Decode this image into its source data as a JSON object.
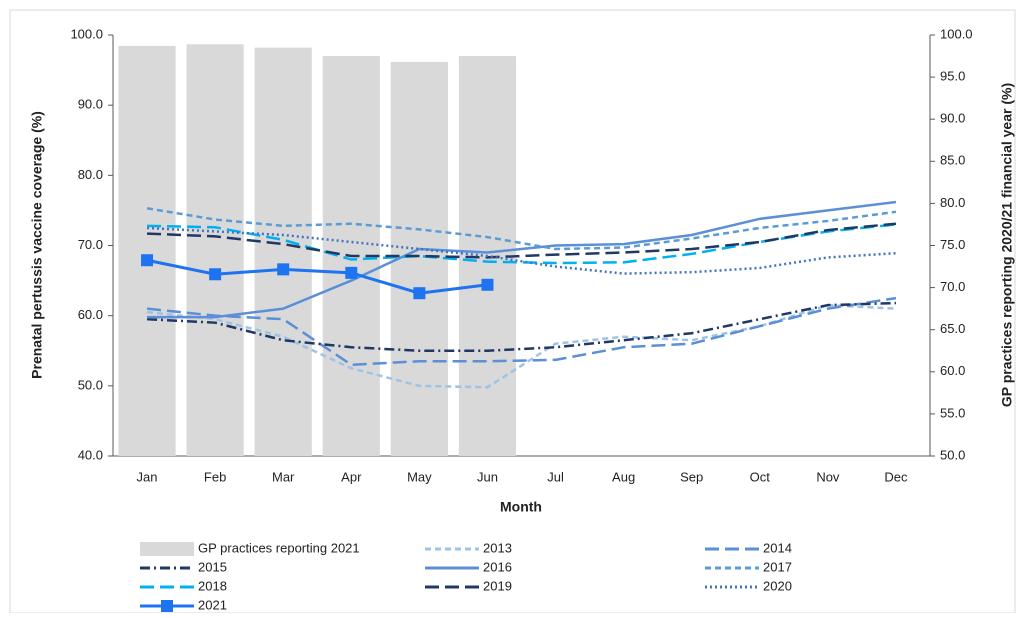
{
  "chart_data": {
    "type": "line",
    "x_label": "Month",
    "y_label": "Prenatal pertussis vaccine coverage (%)",
    "y2_label": "GP practices reporting 2020/21 financial year (%)",
    "categories": [
      "Jan",
      "Feb",
      "Mar",
      "Apr",
      "May",
      "Jun",
      "Jul",
      "Aug",
      "Sep",
      "Oct",
      "Nov",
      "Dec"
    ],
    "ylim": [
      40,
      100
    ],
    "yticks": [
      {
        "value": 40,
        "label": "40.0"
      },
      {
        "value": 50,
        "label": "50.0"
      },
      {
        "value": 60,
        "label": "60.0"
      },
      {
        "value": 70,
        "label": "70.0"
      },
      {
        "value": 80,
        "label": "80.0"
      },
      {
        "value": 90,
        "label": "90.0"
      },
      {
        "value": 100,
        "label": "100.0"
      }
    ],
    "y2lim": [
      50,
      100
    ],
    "y2ticks": [
      {
        "value": 50,
        "label": "50.0"
      },
      {
        "value": 55,
        "label": "55.0"
      },
      {
        "value": 60,
        "label": "60.0"
      },
      {
        "value": 65,
        "label": "65.0"
      },
      {
        "value": 70,
        "label": "70.0"
      },
      {
        "value": 75,
        "label": "75.0"
      },
      {
        "value": 80,
        "label": "80.0"
      },
      {
        "value": 85,
        "label": "85.0"
      },
      {
        "value": 90,
        "label": "90.0"
      },
      {
        "value": 95,
        "label": "95.0"
      },
      {
        "value": 100,
        "label": "100.0"
      }
    ],
    "grid": false,
    "legend": "bottom",
    "series": [
      {
        "name": "GP practices reporting 2021",
        "type": "bar",
        "axis": "y2",
        "color": "#d9d9d9",
        "values": [
          98.7,
          98.9,
          98.5,
          97.5,
          96.8,
          97.5,
          null,
          null,
          null,
          null,
          null,
          null
        ]
      },
      {
        "name": "2013",
        "type": "line",
        "style": "dashed",
        "color": "#9dc3e6",
        "values": [
          60.5,
          59.5,
          57,
          52.5,
          50,
          49.8,
          56,
          57,
          56.5,
          58.5,
          61.5,
          61
        ]
      },
      {
        "name": "2014",
        "type": "line",
        "style": "long-dash",
        "color": "#5b8fd6",
        "values": [
          61,
          60,
          59.5,
          53,
          53.5,
          53.5,
          53.7,
          55.5,
          56,
          58.5,
          61,
          62.5
        ]
      },
      {
        "name": "2015",
        "type": "line",
        "style": "dash-dot",
        "color": "#1f3864",
        "values": [
          59.5,
          59,
          56.5,
          55.5,
          55,
          55,
          55.5,
          56.5,
          57.5,
          59.5,
          61.5,
          61.8
        ]
      },
      {
        "name": "2016",
        "type": "line",
        "style": "solid",
        "color": "#5b8fd6",
        "values": [
          59.8,
          59.8,
          61,
          65,
          69.5,
          69,
          70,
          70.2,
          71.5,
          73.8,
          75,
          76.2
        ]
      },
      {
        "name": "2017",
        "type": "line",
        "style": "dashed",
        "color": "#5b9bd5",
        "values": [
          75.3,
          73.7,
          72.8,
          73.1,
          72.3,
          71.2,
          69.5,
          69.7,
          71,
          72.5,
          73.5,
          74.8
        ]
      },
      {
        "name": "2018",
        "type": "line",
        "style": "long-dash",
        "color": "#00b0f0",
        "values": [
          72.8,
          72.6,
          70.8,
          68,
          68.5,
          67.7,
          67.5,
          67.6,
          68.8,
          70.5,
          72,
          73
        ]
      },
      {
        "name": "2019",
        "type": "line",
        "style": "long-dash",
        "color": "#1f3864",
        "values": [
          71.7,
          71.3,
          70.2,
          68.5,
          68.5,
          68.3,
          68.7,
          69,
          69.5,
          70.5,
          72.2,
          73.1
        ]
      },
      {
        "name": "2020",
        "type": "line",
        "style": "dotted",
        "color": "#4472c4",
        "values": [
          72.5,
          72,
          71.5,
          70.5,
          69.5,
          68.5,
          67,
          66,
          66.2,
          66.8,
          68.3,
          68.9
        ]
      },
      {
        "name": "2021",
        "type": "line",
        "style": "solid",
        "marker": "square",
        "color": "#1e73f0",
        "values": [
          67.9,
          65.9,
          66.6,
          66.1,
          63.2,
          64.4,
          null,
          null,
          null,
          null,
          null,
          null
        ]
      }
    ]
  }
}
